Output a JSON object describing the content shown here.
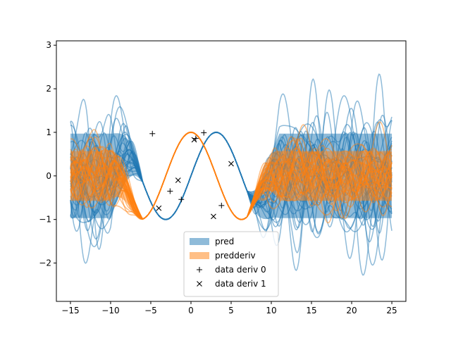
{
  "chart_data": {
    "type": "line",
    "title": "",
    "xlabel": "",
    "ylabel": "",
    "xlim": [
      -16.75,
      26.75
    ],
    "ylim": [
      -2.88,
      3.1
    ],
    "x_ticks": [
      -15,
      -10,
      -5,
      0,
      5,
      10,
      15,
      20,
      25
    ],
    "y_ticks": [
      -2,
      -1,
      0,
      1,
      2,
      3
    ],
    "x_tick_labels": [
      "−15",
      "−10",
      "−5",
      "0",
      "5",
      "10",
      "15",
      "20",
      "25"
    ],
    "y_tick_labels": [
      "−2",
      "−1",
      "0",
      "1",
      "2",
      "3"
    ],
    "grid": false,
    "legend_position": "lower-center",
    "colors": {
      "pred": "#1f77b4",
      "predderiv": "#ff7f0e",
      "markers": "#000000"
    },
    "series": [
      {
        "name": "pred",
        "kind": "band+samples",
        "function": "sin(x/2)",
        "known_range": [
          -6,
          7
        ],
        "band_mean": 0,
        "band_half_width_outside": 0.95,
        "sample_count": 30
      },
      {
        "name": "predderiv",
        "kind": "band+samples",
        "function": "cos(x/2)",
        "known_range": [
          -6,
          7
        ],
        "band_mean": 0,
        "band_half_width_outside": 0.55,
        "sample_count": 30
      },
      {
        "name": "data deriv 0",
        "kind": "markers",
        "marker": "+",
        "x": [
          -4.8,
          -2.6,
          -1.2,
          0.6,
          1.6,
          3.8
        ],
        "y": [
          0.97,
          -0.35,
          -0.54,
          0.86,
          0.99,
          -0.68
        ]
      },
      {
        "name": "data deriv 1",
        "kind": "markers",
        "marker": "x",
        "x": [
          -4.0,
          -1.6,
          0.4,
          2.8,
          5.0
        ],
        "y": [
          -0.74,
          -0.1,
          0.83,
          -0.93,
          0.28
        ]
      }
    ],
    "legend": [
      "pred",
      "predderiv",
      "data deriv 0",
      "data deriv 1"
    ]
  }
}
